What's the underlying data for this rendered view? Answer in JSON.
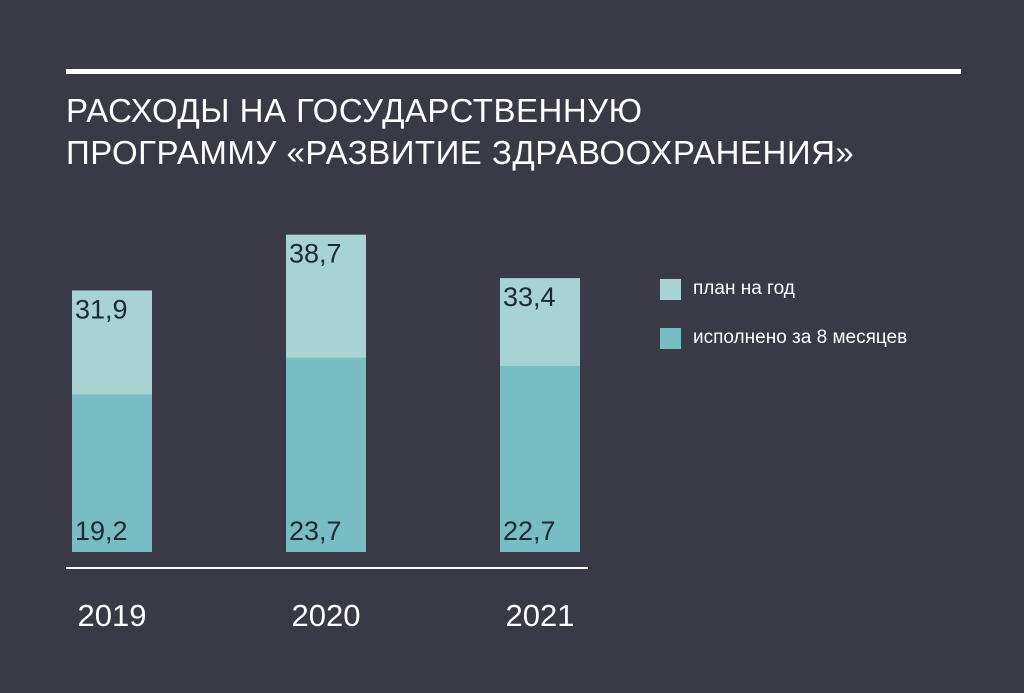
{
  "title_lines": [
    "РАСХОДЫ НА ГОСУДАРСТВЕННУЮ",
    "ПРОГРАММУ «РАЗВИТИЕ ЗДРАВООХРАНЕНИЯ»"
  ],
  "colors": {
    "background": "#3a3a46",
    "plan": "#a7d3d2",
    "executed": "#79bdc4",
    "text": "#ffffff",
    "value_text": "#1f2a30"
  },
  "legend": [
    {
      "label": "план на год",
      "series": "plan"
    },
    {
      "label": "исполнено за 8 месяцев",
      "series": "executed"
    }
  ],
  "chart_data": {
    "type": "bar",
    "stacking": "overlay",
    "categories": [
      "2019",
      "2020",
      "2021"
    ],
    "series": [
      {
        "name": "план на год",
        "key": "plan",
        "values": [
          31.9,
          38.7,
          33.4
        ],
        "labels": [
          "31,9",
          "38,7",
          "33,4"
        ]
      },
      {
        "name": "исполнено за 8 месяцев",
        "key": "executed",
        "values": [
          19.2,
          23.7,
          22.7
        ],
        "labels": [
          "19,2",
          "23,7",
          "22,7"
        ]
      }
    ],
    "ylim": [
      0,
      40
    ],
    "grid": false,
    "legend_position": "right"
  }
}
